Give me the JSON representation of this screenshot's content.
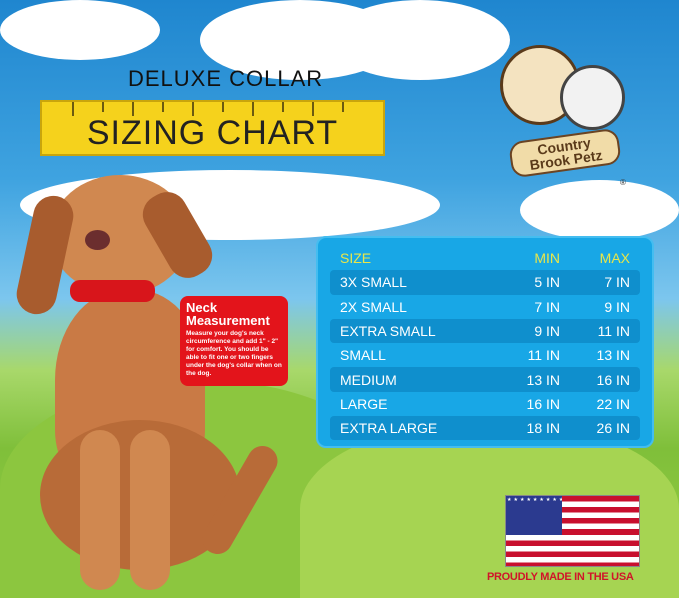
{
  "header": {
    "subtitle": "DELUXE COLLAR",
    "title": "SIZING CHART"
  },
  "logo": {
    "line1": "Country",
    "line2": "Brook Petz",
    "mark": "®"
  },
  "neck_box": {
    "title": "Neck Measurement",
    "text": "Measure your dog's neck circumference and add 1\" - 2\" for comfort. You should be able to fit one or two fingers under the dog's collar when on the dog."
  },
  "table": {
    "headers": [
      "SIZE",
      "MIN",
      "MAX"
    ],
    "rows": [
      [
        "3X SMALL",
        "5 IN",
        "7 IN"
      ],
      [
        "2X SMALL",
        "7 IN",
        "9 IN"
      ],
      [
        "EXTRA SMALL",
        "9 IN",
        "11 IN"
      ],
      [
        "SMALL",
        "11 IN",
        "13 IN"
      ],
      [
        "MEDIUM",
        "13 IN",
        "16 IN"
      ],
      [
        "LARGE",
        "16 IN",
        "22 IN"
      ],
      [
        "EXTRA LARGE",
        "18 IN",
        "26 IN"
      ]
    ]
  },
  "footer": {
    "made_in": "PROUDLY MADE IN THE USA"
  },
  "colors": {
    "ruler": "#f5d21c",
    "table": "#18a7e6",
    "neck_box": "#e3141b",
    "dog": "#c97a45",
    "collar": "#d8151b"
  }
}
